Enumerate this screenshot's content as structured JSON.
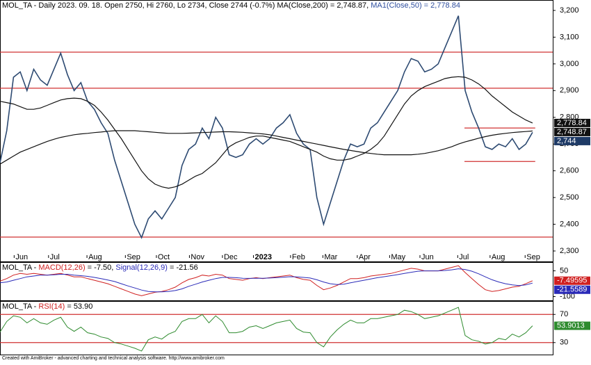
{
  "chart_data": [
    {
      "type": "line",
      "header_parts": [
        {
          "text": "MOL_TA - Daily 2023. 09. 18. Open 2750, Hi 2760, Lo 2734, Close 2744 (-0.7%) MA(Close,200) = 2,748.87, ",
          "color": "#000000"
        },
        {
          "text": "MA1(Close,50) = 2,778.84",
          "color": "#2f4f9f"
        }
      ],
      "xlim": [
        0,
        82
      ],
      "ylim": [
        2261,
        3239
      ],
      "xticks": [
        {
          "value": 2.1,
          "label": "Jun"
        },
        {
          "value": 7.2,
          "label": "Jul"
        },
        {
          "value": 12.9,
          "label": "Aug"
        },
        {
          "value": 18.6,
          "label": "Sep"
        },
        {
          "value": 23.2,
          "label": "Oct"
        },
        {
          "value": 28.1,
          "label": "Nov"
        },
        {
          "value": 33,
          "label": "Dec"
        },
        {
          "value": 37.6,
          "label": "2023"
        },
        {
          "value": 43.1,
          "label": "Feb"
        },
        {
          "value": 47.9,
          "label": "Mar"
        },
        {
          "value": 53,
          "label": "Apr"
        },
        {
          "value": 57.8,
          "label": "May"
        },
        {
          "value": 62.3,
          "label": "Jun"
        },
        {
          "value": 67.9,
          "label": "Jul"
        },
        {
          "value": 72.7,
          "label": "Aug"
        },
        {
          "value": 77.9,
          "label": "Sep"
        }
      ],
      "yticks": [
        {
          "value": 3200,
          "label": "3,200"
        },
        {
          "value": 3100,
          "label": "3,100"
        },
        {
          "value": 3000,
          "label": "3,000"
        },
        {
          "value": 2900,
          "label": "2,900"
        },
        {
          "value": 2800,
          "label": "2,800"
        },
        {
          "value": 2700,
          "label": "2,700"
        },
        {
          "value": 2600,
          "label": "2,600"
        },
        {
          "value": 2500,
          "label": "2,500"
        },
        {
          "value": 2400,
          "label": "2,400"
        },
        {
          "value": 2300,
          "label": "2,300"
        }
      ],
      "hlines": [
        {
          "value": 3044,
          "from": 0,
          "to": 82
        },
        {
          "value": 2909,
          "from": 0,
          "to": 82
        },
        {
          "value": 2352,
          "from": 0,
          "to": 82
        },
        {
          "value": 2760,
          "from": 68.9,
          "to": 79.4
        },
        {
          "value": 2635,
          "from": 68.9,
          "to": 79.4
        }
      ],
      "hline_color": "#d03030",
      "series": [
        {
          "name": "Close",
          "color": "#2d4a72",
          "width": 1.6,
          "last_label": "2,744",
          "label_bg": "#1e3a66",
          "values": [
            2630,
            2750,
            2950,
            2970,
            2900,
            2980,
            2940,
            2920,
            2980,
            3040,
            2960,
            2900,
            2930,
            2860,
            2830,
            2780,
            2740,
            2640,
            2560,
            2480,
            2400,
            2350,
            2420,
            2450,
            2420,
            2460,
            2500,
            2620,
            2680,
            2700,
            2760,
            2720,
            2800,
            2760,
            2660,
            2650,
            2660,
            2700,
            2720,
            2700,
            2720,
            2760,
            2780,
            2810,
            2740,
            2700,
            2680,
            2500,
            2400,
            2480,
            2560,
            2640,
            2700,
            2690,
            2700,
            2760,
            2780,
            2820,
            2860,
            2900,
            2970,
            3020,
            3010,
            2970,
            2980,
            3000,
            3060,
            3120,
            3180,
            2900,
            2820,
            2760,
            2690,
            2680,
            2700,
            2690,
            2720,
            2680,
            2700,
            2744
          ]
        },
        {
          "name": "MA1(Close,50)",
          "color": "#111111",
          "width": 1.2,
          "last_label": "2,778.84",
          "label_bg": "#111111",
          "values": [
            2860,
            2855,
            2850,
            2840,
            2830,
            2830,
            2835,
            2845,
            2855,
            2865,
            2870,
            2872,
            2870,
            2860,
            2845,
            2820,
            2790,
            2755,
            2720,
            2680,
            2640,
            2600,
            2570,
            2550,
            2540,
            2535,
            2540,
            2550,
            2565,
            2580,
            2590,
            2610,
            2630,
            2660,
            2690,
            2705,
            2715,
            2725,
            2730,
            2730,
            2725,
            2720,
            2715,
            2710,
            2700,
            2690,
            2680,
            2670,
            2655,
            2645,
            2640,
            2640,
            2645,
            2655,
            2665,
            2680,
            2700,
            2730,
            2770,
            2810,
            2850,
            2880,
            2900,
            2915,
            2925,
            2935,
            2945,
            2950,
            2952,
            2950,
            2940,
            2925,
            2905,
            2880,
            2860,
            2840,
            2820,
            2805,
            2790,
            2778.84
          ]
        },
        {
          "name": "MA(Close,200)",
          "color": "#111111",
          "width": 1.2,
          "last_label": "2,748.87",
          "label_bg": "#111111",
          "values": [
            2625,
            2640,
            2655,
            2670,
            2680,
            2690,
            2700,
            2710,
            2718,
            2725,
            2730,
            2735,
            2738,
            2740,
            2743,
            2745,
            2748,
            2750,
            2750,
            2750,
            2750,
            2748,
            2746,
            2744,
            2742,
            2740,
            2740,
            2740,
            2741,
            2742,
            2743,
            2744,
            2745,
            2746,
            2746,
            2745,
            2744,
            2742,
            2740,
            2738,
            2735,
            2730,
            2725,
            2720,
            2715,
            2710,
            2705,
            2700,
            2695,
            2690,
            2685,
            2680,
            2676,
            2672,
            2668,
            2665,
            2662,
            2660,
            2660,
            2660,
            2660,
            2660,
            2662,
            2665,
            2670,
            2675,
            2682,
            2690,
            2700,
            2708,
            2715,
            2722,
            2728,
            2733,
            2737,
            2740,
            2743,
            2745,
            2747,
            2748.87
          ]
        }
      ]
    },
    {
      "type": "line",
      "header_parts": [
        {
          "text": "MOL_TA - ",
          "color": "#000000"
        },
        {
          "text": "MACD(12,26)",
          "color": "#d02020"
        },
        {
          "text": " = -7.50, ",
          "color": "#000000"
        },
        {
          "text": "Signal(12,26,9)",
          "color": "#2a2ab8"
        },
        {
          "text": " = -21.56",
          "color": "#000000"
        }
      ],
      "xlim": [
        0,
        82
      ],
      "ylim": [
        -122,
        101
      ],
      "yticks": [
        50,
        -100
      ],
      "series": [
        {
          "name": "MACD(12,26)",
          "color": "#d02020",
          "width": 1,
          "last_label": "-7.49595",
          "label_bg": "#d02020",
          "values": [
            -10,
            5,
            25,
            35,
            30,
            35,
            30,
            25,
            30,
            35,
            25,
            15,
            15,
            5,
            -5,
            -15,
            -25,
            -40,
            -55,
            -70,
            -85,
            -95,
            -85,
            -75,
            -70,
            -60,
            -45,
            -20,
            0,
            10,
            25,
            20,
            30,
            25,
            5,
            0,
            -5,
            5,
            10,
            5,
            10,
            15,
            20,
            25,
            10,
            0,
            -5,
            -35,
            -60,
            -50,
            -35,
            -15,
            5,
            5,
            10,
            20,
            25,
            30,
            35,
            45,
            55,
            65,
            60,
            50,
            50,
            50,
            60,
            70,
            80,
            40,
            5,
            -30,
            -60,
            -70,
            -65,
            -55,
            -45,
            -40,
            -25,
            -7.5
          ]
        },
        {
          "name": "Signal(12,26,9)",
          "color": "#2a2ab8",
          "width": 1,
          "last_label": "-21.5589",
          "label_bg": "#2a2ab8",
          "values": [
            -20,
            -15,
            -5,
            5,
            15,
            20,
            25,
            25,
            27,
            30,
            30,
            25,
            22,
            18,
            12,
            5,
            -3,
            -12,
            -25,
            -38,
            -50,
            -62,
            -70,
            -72,
            -72,
            -70,
            -65,
            -55,
            -40,
            -28,
            -15,
            -5,
            5,
            12,
            12,
            10,
            7,
            6,
            7,
            7,
            8,
            10,
            13,
            16,
            15,
            12,
            8,
            -2,
            -15,
            -25,
            -30,
            -28,
            -20,
            -12,
            -5,
            3,
            10,
            16,
            22,
            28,
            35,
            42,
            48,
            50,
            50,
            50,
            52,
            56,
            62,
            58,
            48,
            33,
            15,
            -2,
            -15,
            -25,
            -32,
            -36,
            -32,
            -21.56
          ]
        }
      ]
    },
    {
      "type": "line",
      "header_parts": [
        {
          "text": "MOL_TA - ",
          "color": "#000000"
        },
        {
          "text": "RSI(14)",
          "color": "#d02020"
        },
        {
          "text": " = 53.90",
          "color": "#000000"
        }
      ],
      "xlim": [
        0,
        82
      ],
      "ylim": [
        13,
        89
      ],
      "yticks": [
        70,
        30
      ],
      "hlines": [
        {
          "value": 70,
          "from": 0,
          "to": 82
        },
        {
          "value": 30,
          "from": 0,
          "to": 82
        }
      ],
      "hline_color": "#d03030",
      "series": [
        {
          "name": "RSI(14)",
          "color": "#2e8b2e",
          "width": 1,
          "last_label": "53.9013",
          "label_bg": "#2e8b2e",
          "values": [
            45,
            60,
            68,
            66,
            58,
            64,
            58,
            56,
            62,
            66,
            52,
            46,
            52,
            44,
            42,
            38,
            36,
            30,
            28,
            25,
            22,
            18,
            34,
            38,
            35,
            42,
            46,
            60,
            64,
            64,
            70,
            58,
            68,
            60,
            44,
            44,
            46,
            52,
            54,
            50,
            54,
            58,
            60,
            62,
            50,
            45,
            44,
            30,
            24,
            38,
            48,
            56,
            62,
            58,
            58,
            64,
            64,
            66,
            68,
            70,
            76,
            74,
            70,
            64,
            66,
            68,
            72,
            76,
            80,
            40,
            34,
            32,
            28,
            30,
            36,
            34,
            42,
            38,
            44,
            53.9
          ]
        }
      ]
    }
  ],
  "footer": "Created with AmiBroker - advanced charting and technical analysis software. http://www.amibroker.com"
}
